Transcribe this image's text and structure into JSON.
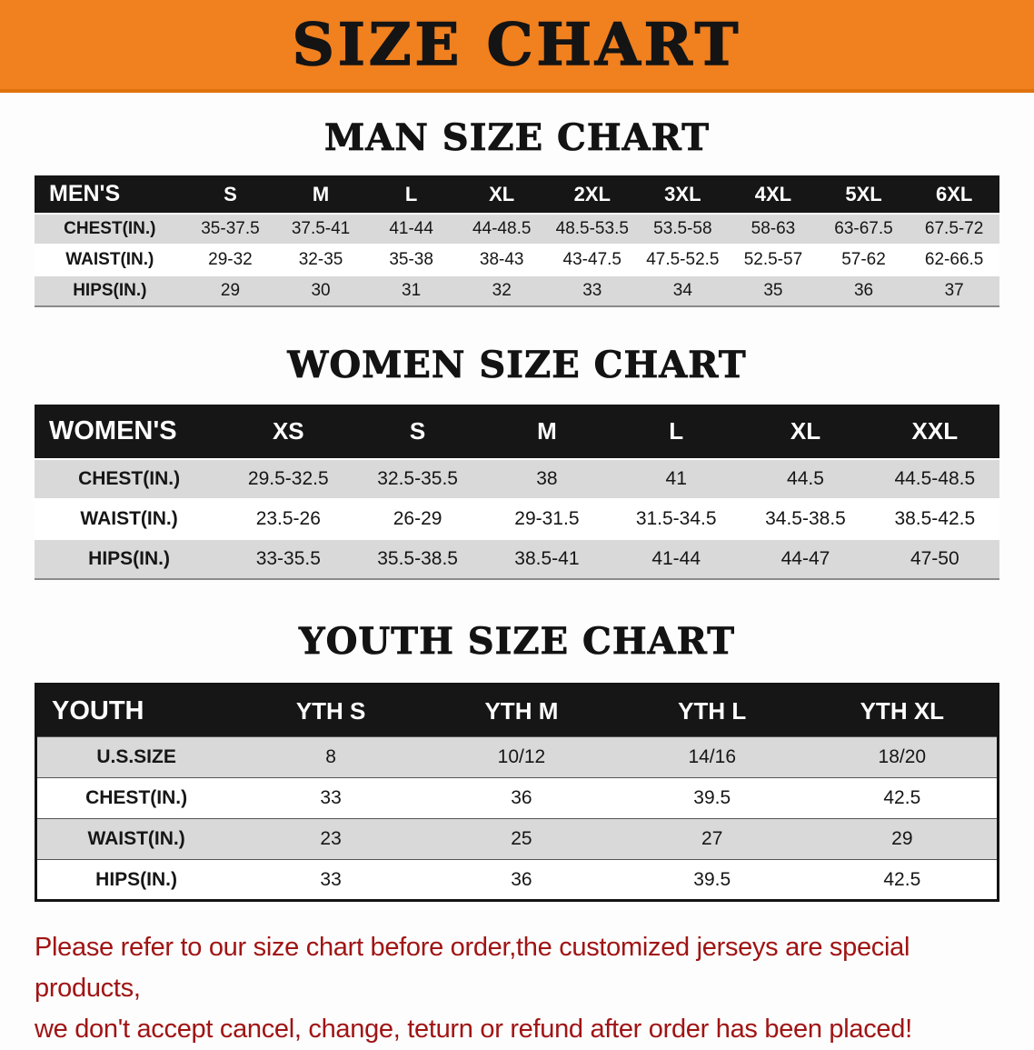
{
  "colors": {
    "banner_bg": "#F1801F",
    "banner_text": "#141414",
    "table_header_bg": "#161616",
    "table_header_text": "#FFFFFF",
    "row_alt_bg": "#D9D9D9",
    "row_bg": "#FFFFFF",
    "footer_text": "#A01414"
  },
  "banner": {
    "title": "SIZE CHART"
  },
  "sections": [
    {
      "heading": "MAN SIZE CHART",
      "table": {
        "header": [
          "MEN'S",
          "S",
          "M",
          "L",
          "XL",
          "2XL",
          "3XL",
          "4XL",
          "5XL",
          "6XL"
        ],
        "rows": [
          {
            "label": "CHEST(IN.)",
            "values": [
              "35-37.5",
              "37.5-41",
              "41-44",
              "44-48.5",
              "48.5-53.5",
              "53.5-58",
              "58-63",
              "63-67.5",
              "67.5-72"
            ]
          },
          {
            "label": "WAIST(IN.)",
            "values": [
              "29-32",
              "32-35",
              "35-38",
              "38-43",
              "43-47.5",
              "47.5-52.5",
              "52.5-57",
              "57-62",
              "62-66.5"
            ]
          },
          {
            "label": "HIPS(IN.)",
            "values": [
              "29",
              "30",
              "31",
              "32",
              "33",
              "34",
              "35",
              "36",
              "37"
            ]
          }
        ]
      }
    },
    {
      "heading": "WOMEN SIZE CHART",
      "table": {
        "header": [
          "WOMEN'S",
          "XS",
          "S",
          "M",
          "L",
          "XL",
          "XXL"
        ],
        "rows": [
          {
            "label": "CHEST(IN.)",
            "values": [
              "29.5-32.5",
              "32.5-35.5",
              "38",
              "41",
              "44.5",
              "44.5-48.5"
            ]
          },
          {
            "label": "WAIST(IN.)",
            "values": [
              "23.5-26",
              "26-29",
              "29-31.5",
              "31.5-34.5",
              "34.5-38.5",
              "38.5-42.5"
            ]
          },
          {
            "label": "HIPS(IN.)",
            "values": [
              "33-35.5",
              "35.5-38.5",
              "38.5-41",
              "41-44",
              "44-47",
              "47-50"
            ]
          }
        ]
      }
    },
    {
      "heading": "YOUTH SIZE CHART",
      "table": {
        "header": [
          "YOUTH",
          "YTH S",
          "YTH M",
          "YTH L",
          "YTH XL"
        ],
        "rows": [
          {
            "label": "U.S.SIZE",
            "values": [
              "8",
              "10/12",
              "14/16",
              "18/20"
            ]
          },
          {
            "label": "CHEST(IN.)",
            "values": [
              "33",
              "36",
              "39.5",
              "42.5"
            ]
          },
          {
            "label": "WAIST(IN.)",
            "values": [
              "23",
              "25",
              "27",
              "29"
            ]
          },
          {
            "label": "HIPS(IN.)",
            "values": [
              "33",
              "36",
              "39.5",
              "42.5"
            ]
          }
        ]
      }
    }
  ],
  "footer": {
    "line1": "Please refer to our size chart before order,the customized jerseys are special products,",
    "line2": "we don't accept cancel, change, teturn or refund after order has been placed!"
  }
}
